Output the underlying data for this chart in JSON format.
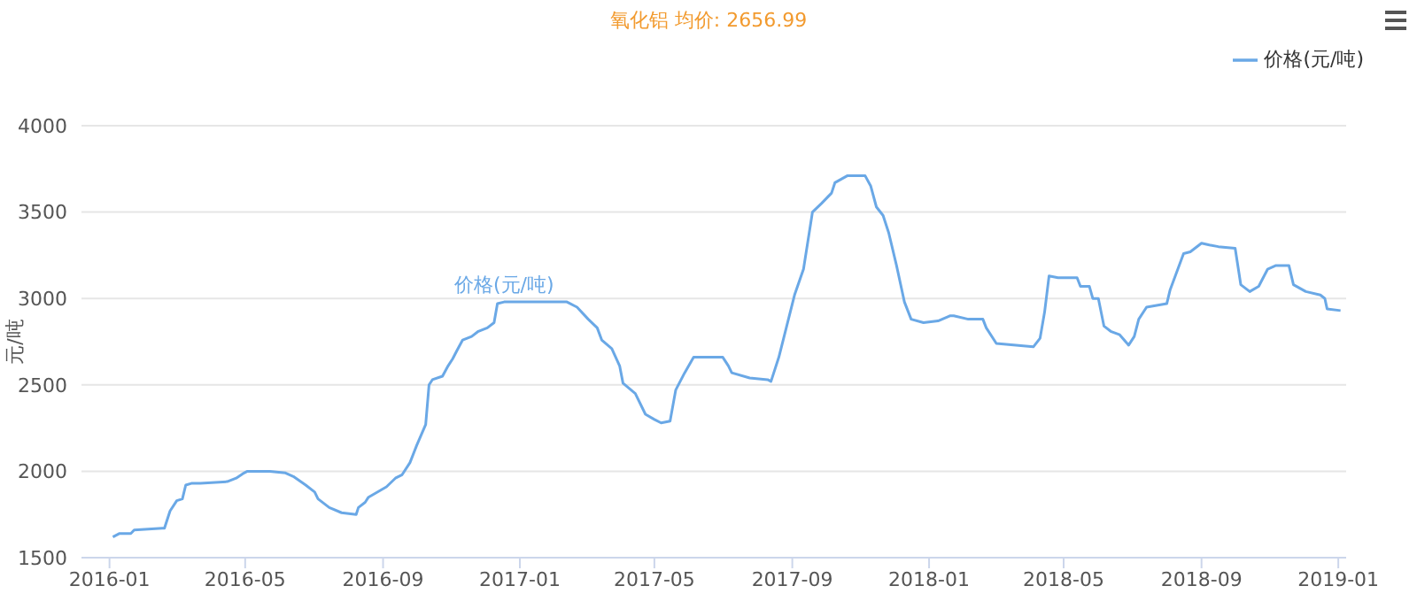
{
  "chart_data": {
    "type": "line",
    "title": "氧化铝 均价: 2656.99",
    "ylabel": "元/吨",
    "x": [
      "2016-01-04",
      "2016-01-10",
      "2016-01-20",
      "2016-01-23",
      "2016-02-17",
      "2016-02-19",
      "2016-02-24",
      "2016-03-01",
      "2016-03-06",
      "2016-03-09",
      "2016-03-14",
      "2016-03-22",
      "2016-04-15",
      "2016-04-23",
      "2016-04-30",
      "2016-05-03",
      "2016-05-23",
      "2016-06-06",
      "2016-06-13",
      "2016-06-24",
      "2016-07-02",
      "2016-07-05",
      "2016-07-15",
      "2016-07-26",
      "2016-08-08",
      "2016-08-10",
      "2016-08-16",
      "2016-08-19",
      "2016-09-04",
      "2016-09-12",
      "2016-09-18",
      "2016-09-25",
      "2016-10-01",
      "2016-10-09",
      "2016-10-12",
      "2016-10-15",
      "2016-10-24",
      "2016-10-29",
      "2016-11-02",
      "2016-11-06",
      "2016-11-11",
      "2016-11-19",
      "2016-11-25",
      "2016-12-03",
      "2016-12-09",
      "2016-12-12",
      "2016-12-18",
      "2017-02-12",
      "2017-02-21",
      "2017-03-03",
      "2017-03-11",
      "2017-03-15",
      "2017-03-24",
      "2017-03-31",
      "2017-04-03",
      "2017-04-14",
      "2017-04-23",
      "2017-05-01",
      "2017-05-07",
      "2017-05-15",
      "2017-05-20",
      "2017-05-28",
      "2017-06-05",
      "2017-07-01",
      "2017-07-06",
      "2017-07-09",
      "2017-07-25",
      "2017-08-10",
      "2017-08-13",
      "2017-08-20",
      "2017-09-03",
      "2017-09-11",
      "2017-09-19",
      "2017-09-27",
      "2017-10-06",
      "2017-10-09",
      "2017-10-20",
      "2017-11-05",
      "2017-11-10",
      "2017-11-15",
      "2017-11-21",
      "2017-11-26",
      "2017-12-03",
      "2017-12-10",
      "2017-12-16",
      "2017-12-27",
      "2018-01-09",
      "2018-01-20",
      "2018-01-23",
      "2018-02-05",
      "2018-02-18",
      "2018-02-21",
      "2018-03-02",
      "2018-04-04",
      "2018-04-10",
      "2018-04-14",
      "2018-04-18",
      "2018-04-26",
      "2018-05-13",
      "2018-05-16",
      "2018-05-24",
      "2018-05-27",
      "2018-06-01",
      "2018-06-06",
      "2018-06-12",
      "2018-06-20",
      "2018-06-28",
      "2018-07-03",
      "2018-07-07",
      "2018-07-14",
      "2018-08-01",
      "2018-08-04",
      "2018-08-16",
      "2018-08-22",
      "2018-09-01",
      "2018-09-08",
      "2018-09-16",
      "2018-10-01",
      "2018-10-06",
      "2018-10-14",
      "2018-10-22",
      "2018-10-30",
      "2018-11-06",
      "2018-11-18",
      "2018-11-22",
      "2018-12-03",
      "2018-12-16",
      "2018-12-20",
      "2018-12-22",
      "2019-01-03"
    ],
    "series": [
      {
        "name": "价格(元/吨)",
        "color": "#6aa8e6",
        "values": [
          1620,
          1640,
          1640,
          1660,
          1670,
          1670,
          1770,
          1830,
          1840,
          1920,
          1930,
          1930,
          1940,
          1960,
          1990,
          2000,
          2000,
          1990,
          1970,
          1920,
          1880,
          1840,
          1790,
          1760,
          1750,
          1790,
          1820,
          1850,
          1910,
          1960,
          1980,
          2050,
          2150,
          2270,
          2500,
          2530,
          2550,
          2610,
          2650,
          2700,
          2760,
          2780,
          2810,
          2830,
          2860,
          2970,
          2980,
          2980,
          2950,
          2880,
          2830,
          2760,
          2710,
          2610,
          2510,
          2450,
          2330,
          2300,
          2280,
          2290,
          2470,
          2570,
          2660,
          2660,
          2610,
          2570,
          2540,
          2530,
          2520,
          2660,
          3020,
          3170,
          3500,
          3550,
          3610,
          3670,
          3710,
          3710,
          3650,
          3530,
          3480,
          3380,
          3190,
          2980,
          2880,
          2860,
          2870,
          2900,
          2900,
          2880,
          2880,
          2830,
          2740,
          2720,
          2770,
          2920,
          3130,
          3120,
          3120,
          3070,
          3070,
          3000,
          3000,
          2840,
          2810,
          2790,
          2730,
          2780,
          2880,
          2950,
          2970,
          3050,
          3260,
          3270,
          3320,
          3310,
          3300,
          3290,
          3080,
          3040,
          3070,
          3170,
          3190,
          3190,
          3080,
          3040,
          3020,
          3000,
          2940,
          2930
        ]
      }
    ],
    "annotations": [
      {
        "text": "价格(元/吨)",
        "x": "2016-12-18",
        "y": 2980
      }
    ],
    "xlim": [
      "2015-12-07",
      "2019-01-08"
    ],
    "xticks": [
      {
        "value": "2016-01",
        "label": "2016-01"
      },
      {
        "value": "2016-05",
        "label": "2016-05"
      },
      {
        "value": "2016-09",
        "label": "2016-09"
      },
      {
        "value": "2017-01",
        "label": "2017-01"
      },
      {
        "value": "2017-05",
        "label": "2017-05"
      },
      {
        "value": "2017-09",
        "label": "2017-09"
      },
      {
        "value": "2018-01",
        "label": "2018-01"
      },
      {
        "value": "2018-05",
        "label": "2018-05"
      },
      {
        "value": "2018-09",
        "label": "2018-09"
      },
      {
        "value": "2019-01",
        "label": "2019-01"
      }
    ],
    "ylim": [
      1500,
      4000
    ],
    "yticks": [
      1500,
      2000,
      2500,
      3000,
      3500,
      4000
    ],
    "grid": "y",
    "legend": "top right",
    "marker": "none",
    "line_style": "solid"
  }
}
